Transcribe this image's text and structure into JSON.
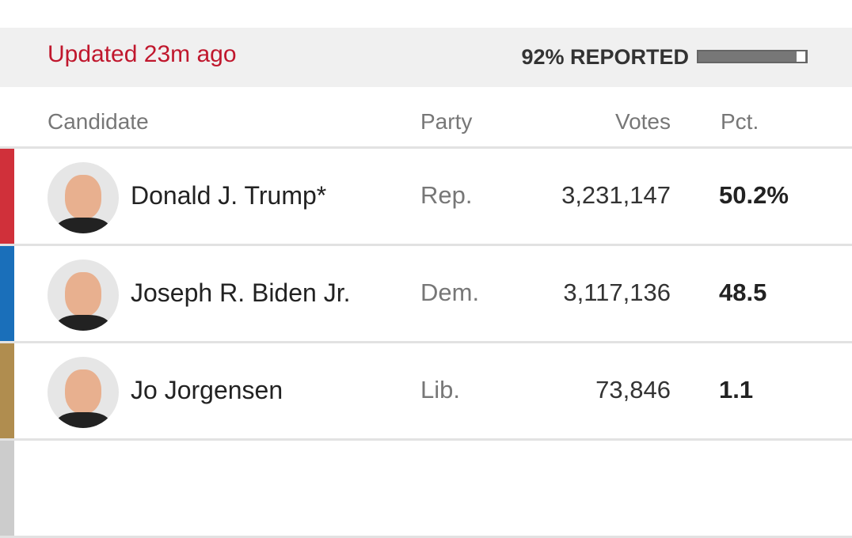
{
  "header": {
    "updated": "Updated 23m ago",
    "reported": "92% REPORTED"
  },
  "table": {
    "columns": [
      "Candidate",
      "Party",
      "Votes",
      "Pct."
    ],
    "rows": [
      [
        "Donald J. Trump*",
        "Rep.",
        "3,231,147",
        "50.2%"
      ],
      [
        "Joseph R. Biden Jr.",
        "Dem.",
        "3,117,136",
        "48.5"
      ],
      [
        "Jo Jorgensen",
        "Lib.",
        "73,846",
        "1.1"
      ]
    ]
  }
}
